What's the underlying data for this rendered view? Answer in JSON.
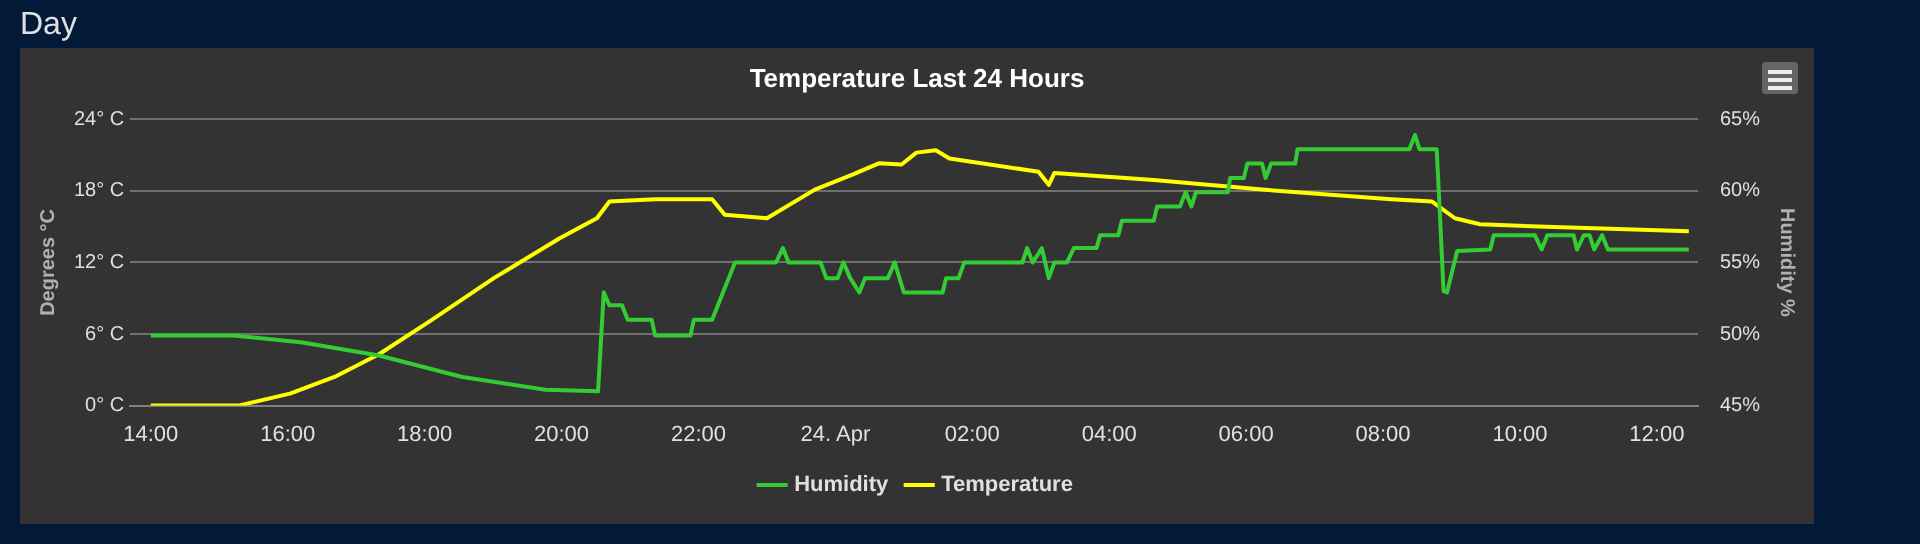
{
  "chart_data": {
    "type": "line",
    "title": "Temperature Last 24 Hours",
    "annotations": [
      "Day"
    ],
    "ylabel": "Degrees °C",
    "y2label": "Humidity %",
    "legend": "bottom",
    "grid": "y",
    "marker": "none",
    "line_style": "solid",
    "xlim": [
      "--04-23T13:42",
      "--04-24T12:36"
    ],
    "xticks": [
      {
        "value": "--04-23T14:00",
        "label": "14:00"
      },
      {
        "value": "--04-23T16:00",
        "label": "16:00"
      },
      {
        "value": "--04-23T18:00",
        "label": "18:00"
      },
      {
        "value": "--04-23T20:00",
        "label": "20:00"
      },
      {
        "value": "--04-23T22:00",
        "label": "22:00"
      },
      {
        "value": "--04-24T00:00",
        "label": "24. Apr"
      },
      {
        "value": "--04-24T02:00",
        "label": "02:00"
      },
      {
        "value": "--04-24T04:00",
        "label": "04:00"
      },
      {
        "value": "--04-24T06:00",
        "label": "06:00"
      },
      {
        "value": "--04-24T08:00",
        "label": "08:00"
      },
      {
        "value": "--04-24T10:00",
        "label": "10:00"
      },
      {
        "value": "--04-24T12:00",
        "label": "12:00"
      }
    ],
    "ylim": [
      0,
      24
    ],
    "yticks": [
      {
        "value": 0,
        "label": "0° C"
      },
      {
        "value": 6,
        "label": "6° C"
      },
      {
        "value": 12,
        "label": "12° C"
      },
      {
        "value": 18,
        "label": "18° C"
      },
      {
        "value": 24,
        "label": "24° C"
      }
    ],
    "y2lim": [
      45,
      65
    ],
    "y2ticks": [
      {
        "value": 45,
        "label": "45%"
      },
      {
        "value": 50,
        "label": "50%"
      },
      {
        "value": 55,
        "label": "55%"
      },
      {
        "value": 60,
        "label": "60%"
      },
      {
        "value": 65,
        "label": "65%"
      }
    ],
    "series": [
      {
        "name": "Humidity",
        "color": "#33cc33",
        "axis": "y2",
        "x": [
          "--04-23T14:00",
          "--04-23T15:12",
          "--04-23T16:13",
          "--04-23T17:20",
          "--04-23T18:33",
          "--04-23T19:46",
          "--04-23T20:32",
          "--04-23T20:37",
          "--04-23T20:42",
          "--04-23T20:53",
          "--04-23T20:58",
          "--04-23T21:19",
          "--04-23T21:22",
          "--04-23T21:53",
          "--04-23T21:56",
          "--04-23T22:12",
          "--04-23T22:32",
          "--04-23T23:08",
          "--04-23T23:14",
          "--04-23T23:19",
          "--04-23T23:47",
          "--04-23T23:52",
          "--04-24T00:02",
          "--04-24T00:07",
          "--04-24T00:13",
          "--04-24T00:21",
          "--04-24T00:26",
          "--04-24T00:46",
          "--04-24T00:52",
          "--04-24T01:00",
          "--04-24T01:34",
          "--04-24T01:37",
          "--04-24T01:48",
          "--04-24T01:53",
          "--04-24T02:44",
          "--04-24T02:48",
          "--04-24T02:53",
          "--04-24T03:01",
          "--04-24T03:07",
          "--04-24T03:12",
          "--04-24T03:23",
          "--04-24T03:29",
          "--04-24T03:49",
          "--04-24T03:52",
          "--04-24T04:08",
          "--04-24T04:11",
          "--04-24T04:39",
          "--04-24T04:42",
          "--04-24T05:02",
          "--04-24T05:07",
          "--04-24T05:12",
          "--04-24T05:16",
          "--04-24T05:44",
          "--04-24T05:46",
          "--04-24T05:58",
          "--04-24T06:01",
          "--04-24T06:14",
          "--04-24T06:17",
          "--04-24T06:22",
          "--04-24T06:43",
          "--04-24T06:45",
          "--04-24T08:23",
          "--04-24T08:28",
          "--04-24T08:32",
          "--04-24T08:47",
          "--04-24T08:50",
          "--04-24T08:53",
          "--04-24T08:56",
          "--04-24T09:05",
          "--04-24T09:34",
          "--04-24T09:37",
          "--04-24T10:13",
          "--04-24T10:19",
          "--04-24T10:24",
          "--04-24T10:47",
          "--04-24T10:50",
          "--04-24T10:56",
          "--04-24T11:01",
          "--04-24T11:05",
          "--04-24T11:12",
          "--04-24T11:17",
          "--04-24T12:28"
        ],
        "values": [
          49.9,
          49.9,
          49.4,
          48.5,
          47.0,
          46.1,
          46.0,
          52.9,
          52.0,
          52.0,
          51.0,
          51.0,
          49.9,
          49.9,
          51.0,
          51.0,
          55.0,
          55.0,
          56.0,
          55.0,
          55.0,
          53.9,
          53.9,
          55.0,
          53.9,
          52.9,
          53.9,
          53.9,
          55.0,
          52.9,
          52.9,
          53.9,
          53.9,
          55.0,
          55.0,
          56.0,
          55.0,
          56.0,
          53.9,
          55.0,
          55.0,
          56.0,
          56.0,
          56.9,
          56.9,
          57.9,
          57.9,
          58.9,
          58.9,
          59.9,
          58.9,
          59.9,
          59.9,
          60.9,
          60.9,
          61.9,
          61.9,
          60.9,
          61.9,
          61.9,
          62.9,
          62.9,
          63.9,
          62.9,
          62.9,
          58.1,
          53.0,
          52.9,
          55.8,
          55.9,
          56.9,
          56.9,
          55.9,
          56.9,
          56.9,
          55.9,
          56.9,
          56.9,
          55.9,
          56.9,
          55.9,
          55.9
        ]
      },
      {
        "name": "Temperature",
        "color": "#ffff00",
        "x": [
          "--04-23T14:00",
          "--04-23T15:17",
          "--04-23T16:02",
          "--04-23T16:41",
          "--04-23T17:20",
          "--04-23T18:05",
          "--04-23T19:01",
          "--04-23T19:58",
          "--04-23T20:31",
          "--04-23T20:42",
          "--04-23T21:22",
          "--04-23T22:12",
          "--04-23T22:23",
          "--04-23T23:00",
          "--04-23T23:42",
          "--04-24T00:16",
          "--04-24T00:38",
          "--04-24T00:58",
          "--04-24T01:11",
          "--04-24T01:28",
          "--04-24T01:40",
          "--04-24T02:58",
          "--04-24T03:07",
          "--04-24T03:12",
          "--04-24T04:39",
          "--04-24T06:14",
          "--04-24T08:07",
          "--04-24T08:43",
          "--04-24T09:03",
          "--04-24T09:25",
          "--04-24T10:16",
          "--04-24T12:28"
        ],
        "values": [
          0,
          0,
          1.0,
          2.4,
          4.3,
          7.1,
          10.7,
          14.0,
          15.7,
          17.1,
          17.3,
          17.3,
          16.0,
          15.7,
          18.1,
          19.4,
          20.3,
          20.2,
          21.2,
          21.4,
          20.7,
          19.6,
          18.5,
          19.5,
          18.9,
          18.1,
          17.3,
          17.1,
          15.7,
          15.2,
          15.0,
          14.6
        ]
      }
    ]
  }
}
